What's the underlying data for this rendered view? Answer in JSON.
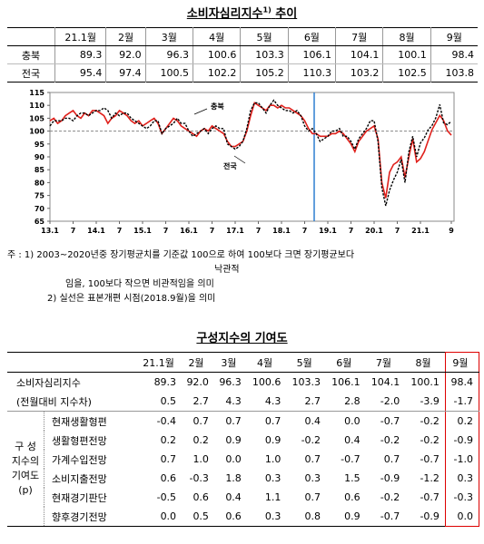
{
  "title": {
    "main": "소비자심리지수",
    "sup": "1)",
    "rest": "추이"
  },
  "table1": {
    "header": [
      "21.1월",
      "2월",
      "3월",
      "4월",
      "5월",
      "6월",
      "7월",
      "8월",
      "9월"
    ],
    "rows": [
      {
        "label": "충북",
        "cells": [
          "89.3",
          "92.0",
          "96.3",
          "100.6",
          "103.3",
          "106.1",
          "104.1",
          "100.1",
          "98.4"
        ]
      },
      {
        "label": "전국",
        "cells": [
          "95.4",
          "97.4",
          "100.5",
          "102.2",
          "105.2",
          "110.3",
          "103.2",
          "102.5",
          "103.8"
        ]
      }
    ]
  },
  "chart_data": {
    "type": "line",
    "ylim": [
      65,
      115
    ],
    "yticks": [
      65,
      70,
      75,
      80,
      85,
      90,
      95,
      100,
      105,
      110,
      115
    ],
    "baseline": 100,
    "categories": [
      "13.1",
      null,
      null,
      null,
      null,
      null,
      "7",
      null,
      null,
      null,
      null,
      null,
      "14.1",
      null,
      null,
      null,
      null,
      null,
      "7",
      null,
      null,
      null,
      null,
      null,
      "15.1",
      null,
      null,
      null,
      null,
      null,
      "7",
      null,
      null,
      null,
      null,
      null,
      "16.1",
      null,
      null,
      null,
      null,
      null,
      "7",
      null,
      null,
      null,
      null,
      null,
      "17.1",
      null,
      null,
      null,
      null,
      null,
      "7",
      null,
      null,
      null,
      null,
      null,
      "18.1",
      null,
      null,
      null,
      null,
      null,
      "7",
      null,
      null,
      null,
      null,
      null,
      "19.1",
      null,
      null,
      null,
      null,
      null,
      "7",
      null,
      null,
      null,
      null,
      null,
      "20.1",
      null,
      null,
      null,
      null,
      null,
      "7",
      null,
      null,
      null,
      null,
      null,
      "21.1",
      null,
      null,
      null,
      null,
      null,
      null,
      null,
      "9"
    ],
    "series": [
      {
        "name": "충북",
        "color": "#e0201b",
        "dashed": false,
        "values": [
          104,
          105,
          103,
          104,
          106,
          107,
          108,
          106,
          105,
          107,
          106,
          108,
          108,
          107,
          106,
          103,
          105,
          106,
          108,
          107,
          106,
          104,
          103,
          104,
          102,
          103,
          104,
          105,
          103,
          99,
          101,
          103,
          105,
          104,
          102,
          101,
          100,
          99,
          98,
          100,
          101,
          100,
          102,
          101,
          100,
          99,
          96,
          94,
          94,
          95,
          96,
          100,
          106,
          111,
          110,
          109,
          108,
          110,
          110,
          109,
          110,
          109,
          109,
          108,
          107,
          106,
          104,
          101,
          99,
          99,
          98,
          98,
          98,
          99,
          99,
          100,
          99,
          97,
          95,
          92,
          96,
          98,
          100,
          101,
          102,
          97,
          80,
          74,
          84,
          87,
          88,
          90,
          82,
          90,
          97,
          88,
          89.3,
          92.0,
          96.3,
          100.6,
          103.3,
          106.1,
          104.1,
          100.1,
          98.4
        ]
      },
      {
        "name": "전국",
        "color": "#000000",
        "dashed": true,
        "values": [
          102,
          104,
          104,
          104,
          105,
          105,
          104,
          106,
          107,
          107,
          106,
          107,
          108,
          108,
          109,
          108,
          105,
          107,
          106,
          107,
          107,
          105,
          104,
          103,
          102,
          101,
          102,
          104,
          104,
          99,
          101,
          102,
          103,
          105,
          103,
          103,
          100,
          98,
          99,
          100,
          101,
          99,
          101,
          102,
          101,
          101,
          95,
          94,
          93,
          94,
          96,
          101,
          108,
          111,
          111,
          109,
          107,
          110,
          112,
          110,
          109,
          108,
          108,
          107,
          108,
          106,
          102,
          100,
          101,
          99,
          96,
          97,
          98,
          100,
          100,
          101,
          98,
          98,
          96,
          93,
          97,
          99,
          101,
          104,
          104,
          96,
          78,
          71,
          77,
          81,
          84,
          89,
          80,
          92,
          98,
          90,
          95.4,
          97.4,
          100.5,
          102.2,
          105.2,
          110.3,
          103.2,
          102.5,
          103.8
        ]
      }
    ]
  },
  "notes": [
    "주 : 1) 2003~2020년중 장기평균치를 기준값 100으로 하여 100보다 크면 장기평균보다",
    "낙관적",
    "임을, 100보다 작으면 비관적임을 의미",
    "2) 실선은 표본개편 시점(2018.9월)을 의미"
  ],
  "table2": {
    "title": "구성지수의 기여도",
    "header": [
      "21.1월",
      "2월",
      "3월",
      "4월",
      "5월",
      "6월",
      "7월",
      "8월",
      "9월"
    ],
    "summary_rows": [
      {
        "label": "소비자심리지수",
        "cells": [
          "89.3",
          "92.0",
          "96.3",
          "100.6",
          "103.3",
          "106.1",
          "104.1",
          "100.1",
          "98.4"
        ]
      },
      {
        "label": "(전월대비 지수차)",
        "cells": [
          "0.5",
          "2.7",
          "4.3",
          "4.3",
          "2.7",
          "2.8",
          "-2.0",
          "-3.9",
          "-1.7"
        ]
      }
    ],
    "group_label": [
      "구  성",
      "지수의",
      "기여도",
      "(p)"
    ],
    "rows": [
      {
        "label": "현재생활형편",
        "cells": [
          "-0.4",
          "0.7",
          "0.7",
          "0.7",
          "0.4",
          "0.0",
          "-0.7",
          "-0.2",
          "0.2"
        ]
      },
      {
        "label": "생활형편전망",
        "cells": [
          "0.2",
          "0.2",
          "0.9",
          "0.9",
          "-0.2",
          "0.4",
          "-0.2",
          "-0.2",
          "-0.9"
        ]
      },
      {
        "label": "가계수입전망",
        "cells": [
          "0.7",
          "1.0",
          "0.0",
          "1.0",
          "0.7",
          "-0.7",
          "0.7",
          "-0.7",
          "-1.0"
        ]
      },
      {
        "label": "소비지출전망",
        "cells": [
          "0.6",
          "-0.3",
          "1.8",
          "0.3",
          "0.3",
          "1.5",
          "-0.9",
          "-1.2",
          "0.3"
        ]
      },
      {
        "label": "현재경기판단",
        "cells": [
          "-0.5",
          "0.6",
          "0.4",
          "1.1",
          "0.7",
          "0.6",
          "-0.2",
          "-0.7",
          "-0.3"
        ]
      },
      {
        "label": "향후경기전망",
        "cells": [
          "0.0",
          "0.5",
          "0.6",
          "0.3",
          "0.8",
          "0.9",
          "-0.7",
          "-0.9",
          "0.0"
        ]
      }
    ]
  }
}
